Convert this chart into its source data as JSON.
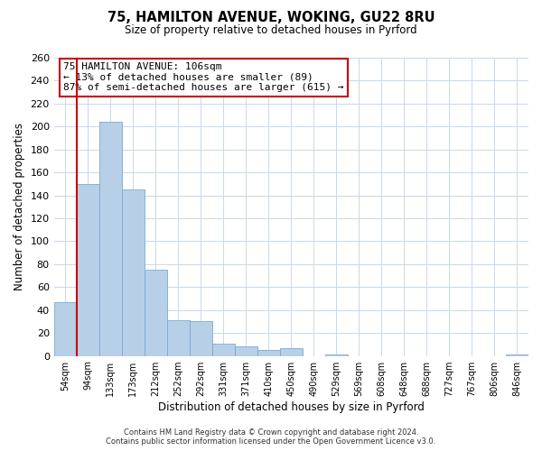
{
  "title": "75, HAMILTON AVENUE, WOKING, GU22 8RU",
  "subtitle": "Size of property relative to detached houses in Pyrford",
  "xlabel": "Distribution of detached houses by size in Pyrford",
  "ylabel": "Number of detached properties",
  "bar_labels": [
    "54sqm",
    "94sqm",
    "133sqm",
    "173sqm",
    "212sqm",
    "252sqm",
    "292sqm",
    "331sqm",
    "371sqm",
    "410sqm",
    "450sqm",
    "490sqm",
    "529sqm",
    "569sqm",
    "608sqm",
    "648sqm",
    "688sqm",
    "727sqm",
    "767sqm",
    "806sqm",
    "846sqm"
  ],
  "bar_values": [
    47,
    150,
    204,
    145,
    75,
    31,
    30,
    11,
    8,
    5,
    7,
    0,
    1,
    0,
    0,
    0,
    0,
    0,
    0,
    0,
    1
  ],
  "bar_color": "#b8cfe8",
  "bar_edge_color": "#7aaad0",
  "vline_x": 0.5,
  "vline_color": "#cc0000",
  "ylim": [
    0,
    260
  ],
  "yticks": [
    0,
    20,
    40,
    60,
    80,
    100,
    120,
    140,
    160,
    180,
    200,
    220,
    240,
    260
  ],
  "annotation_title": "75 HAMILTON AVENUE: 106sqm",
  "annotation_line1": "← 13% of detached houses are smaller (89)",
  "annotation_line2": "87% of semi-detached houses are larger (615) →",
  "annotation_box_color": "#ffffff",
  "annotation_box_edge": "#cc0000",
  "footer_line1": "Contains HM Land Registry data © Crown copyright and database right 2024.",
  "footer_line2": "Contains public sector information licensed under the Open Government Licence v3.0.",
  "background_color": "#ffffff",
  "grid_color": "#c8d8ea"
}
